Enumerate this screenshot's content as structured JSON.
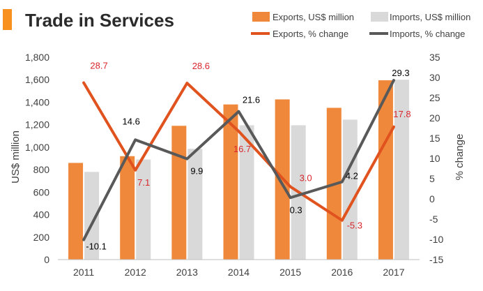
{
  "colors": {
    "accent": "#F7901E",
    "exports_bar": "#F0883B",
    "imports_bar": "#D9D9D9",
    "exports_line": "#E0531F",
    "imports_line": "#595959",
    "exports_label": "#D9262C",
    "imports_label": "#000000",
    "title": "#2B2B2B",
    "axis": "#404040"
  },
  "chart_data": {
    "type": "bar",
    "title": "Trade in Services",
    "categories": [
      "2011",
      "2012",
      "2013",
      "2014",
      "2015",
      "2016",
      "2017"
    ],
    "series": [
      {
        "name": "Exports, US$ million",
        "kind": "bar",
        "axis": "left",
        "values": [
          860,
          920,
          1190,
          1380,
          1425,
          1350,
          1595
        ]
      },
      {
        "name": "Imports, US$ million",
        "kind": "bar",
        "axis": "left",
        "values": [
          780,
          890,
          985,
          1195,
          1195,
          1245,
          1600
        ]
      },
      {
        "name": "Exports, % change",
        "kind": "line",
        "axis": "right",
        "values": [
          28.7,
          7.1,
          28.6,
          16.7,
          3.0,
          -5.3,
          17.8
        ],
        "labels": [
          "28.7",
          "7.1",
          "28.6",
          "16.7",
          "3.0",
          "-5.3",
          "17.8"
        ]
      },
      {
        "name": "Imports, % change",
        "kind": "line",
        "axis": "right",
        "values": [
          -10.1,
          14.6,
          9.9,
          21.6,
          0.3,
          4.2,
          29.3
        ],
        "labels": [
          "-10.1",
          "14.6",
          "9.9",
          "21.6",
          "0.3",
          "4.2",
          "29.3"
        ]
      }
    ],
    "ylabel": "US$ million",
    "ylim": [
      0,
      1800
    ],
    "yticks": [
      0,
      200,
      400,
      600,
      800,
      1000,
      1200,
      1400,
      1600,
      1800
    ],
    "ytick_labels": [
      "0",
      "200",
      "400",
      "600",
      "800",
      "1,000",
      "1,200",
      "1,400",
      "1,600",
      "1,800"
    ],
    "y2label": "% change",
    "y2lim": [
      -15,
      35
    ],
    "y2ticks": [
      -15,
      -10,
      -5,
      0,
      5,
      10,
      15,
      20,
      25,
      30,
      35
    ],
    "y2tick_labels": [
      "-15",
      "-10",
      "-5",
      "0",
      "5",
      "10",
      "15",
      "20",
      "25",
      "30",
      "35"
    ],
    "legend_position": "top-right",
    "grid": false
  }
}
